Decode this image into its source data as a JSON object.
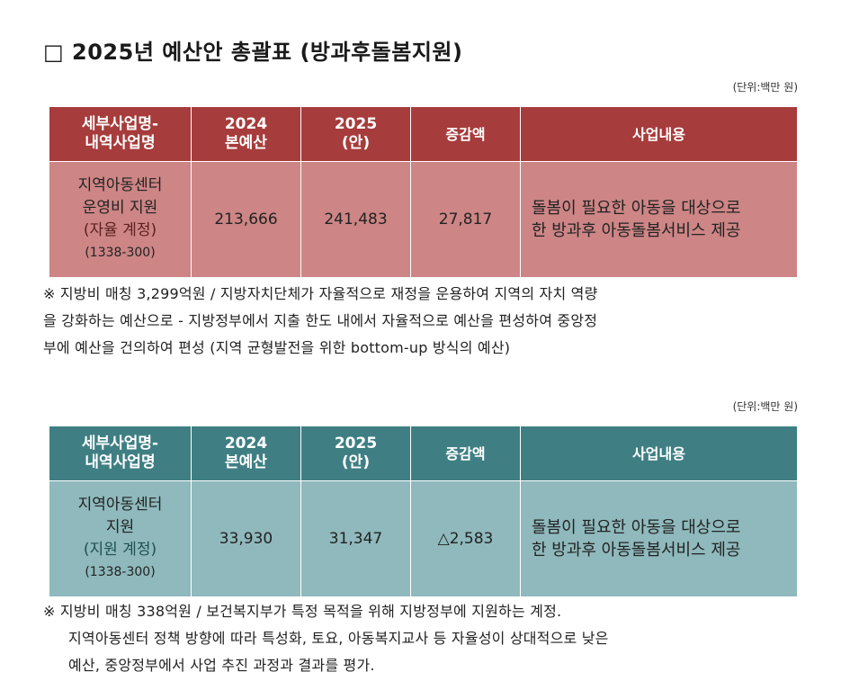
{
  "title": "□ 2025년 예산안 총괄표 (방과후돌봄지원)",
  "unit_label": "(단위:백만 원)",
  "headers": {
    "col1": [
      "세부사업명-",
      "내역사업명"
    ],
    "col2": [
      "2024",
      "본예산"
    ],
    "col3": [
      "2025",
      "(안)"
    ],
    "col4": "증감액",
    "col5": "사업내용"
  },
  "table1": {
    "name": [
      "지역아동센터",
      "운영비 지원"
    ],
    "account": "(자율 계정)",
    "code": "(1338-300)",
    "budget_2024": "213,666",
    "budget_2025": "241,483",
    "change": "27,817",
    "content": [
      "돌봄이 필요한 아동을 대상으로",
      "한 방과후 아동돌봄서비스 제공"
    ],
    "note": [
      "※ 지방비 매칭 3,299억원 / 지방자치단체가 자율적으로 재정을 운용하여 지역의 자치 역량",
      "을 강화하는 예산으로 - 지방정부에서 지출 한도 내에서 자율적으로 예산을 편성하여 중앙정",
      "부에 예산을 건의하여 편성 (지역 균형발전을 위한 bottom-up 방식의 예산)"
    ]
  },
  "table2": {
    "name": [
      "지역아동센터",
      "지원"
    ],
    "account": "(지원 계정)",
    "code": "(1338-300)",
    "budget_2024": "33,930",
    "budget_2025": "31,347",
    "change": "△2,583",
    "content": [
      "돌봄이 필요한 아동을 대상으로",
      "한 방과후 아동돌봄서비스 제공"
    ],
    "note": [
      "※ 지방비 매칭 338억원 / 보건복지부가 특정 목적을 위해 지방정부에 지원하는 계정.",
      "지역아동센터 정책 방향에 따라 특성화, 토요, 아동복지교사 등 자율성이 상대적으로 낮은",
      "예산, 중앙정부에서 사업 추진 과정과 결과를 평가."
    ]
  },
  "colors": {
    "table1_header": "#a63c3b",
    "table1_body": "#cd8585",
    "table2_header": "#3f7f84",
    "table2_body": "#8fb9bc"
  }
}
